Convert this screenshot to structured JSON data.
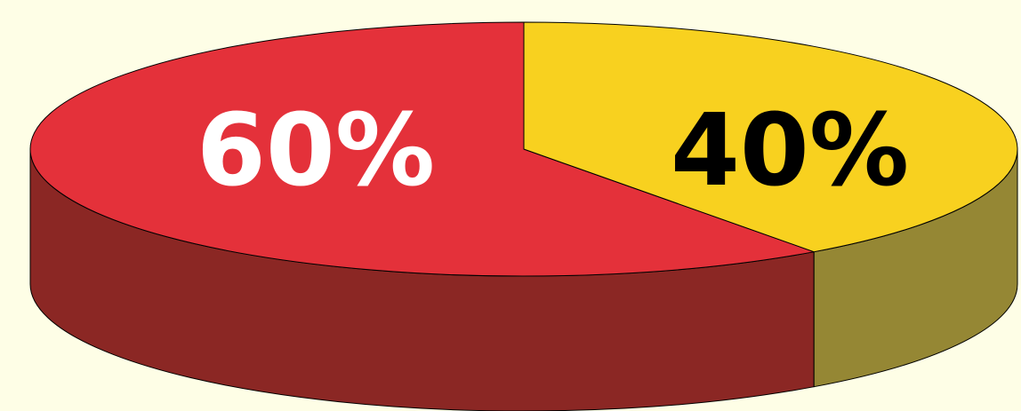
{
  "chart_data": {
    "type": "pie",
    "style": "3d",
    "categories": [
      "60%",
      "40%"
    ],
    "values": [
      60,
      40
    ],
    "labels": [
      "60%",
      "40%"
    ],
    "colors": {
      "background": "#FEFEE6",
      "slice_top": [
        "#E4313A",
        "#F8D11F"
      ],
      "slice_side": [
        "#8B2724",
        "#958734"
      ],
      "label": [
        "#FFFFFF",
        "#000000"
      ],
      "outline": "#000000"
    }
  }
}
